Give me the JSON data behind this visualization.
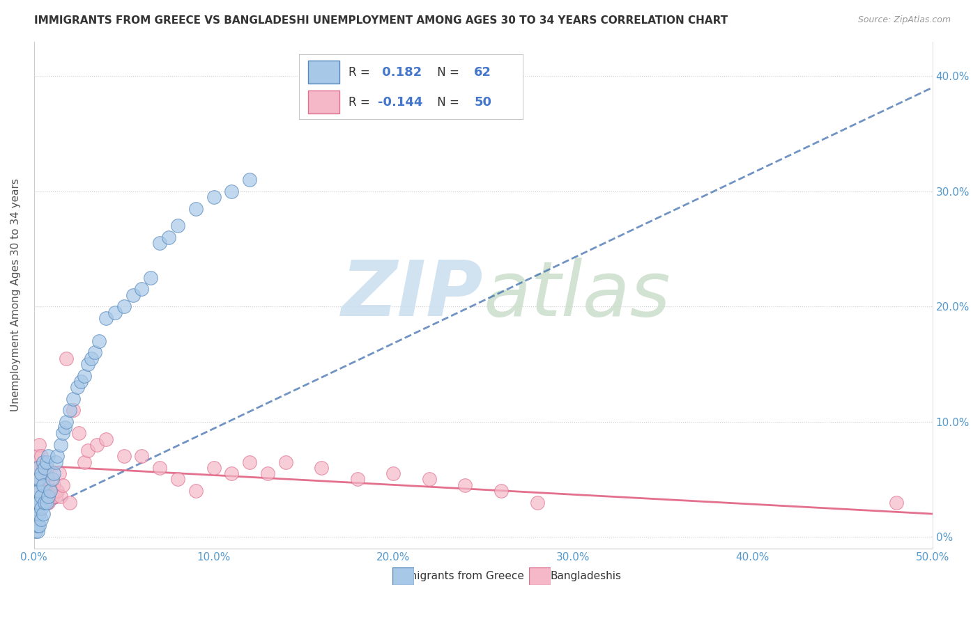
{
  "title": "IMMIGRANTS FROM GREECE VS BANGLADESHI UNEMPLOYMENT AMONG AGES 30 TO 34 YEARS CORRELATION CHART",
  "source": "Source: ZipAtlas.com",
  "ylabel": "Unemployment Among Ages 30 to 34 years",
  "xlim": [
    0,
    0.5
  ],
  "ylim": [
    -0.01,
    0.43
  ],
  "blue_color": "#a8c8e8",
  "pink_color": "#f4b8c8",
  "blue_edge_color": "#5588bb",
  "pink_edge_color": "#e07090",
  "blue_trend_color": "#3366aa",
  "pink_trend_color": "#e06080",
  "axis_color": "#5599cc",
  "title_color": "#333333",
  "source_color": "#999999",
  "watermark_zip_color": "#cce0f0",
  "watermark_atlas_color": "#c8ddc8",
  "legend_r1": "0.182",
  "legend_n1": "62",
  "legend_r2": "-0.144",
  "legend_n2": "50",
  "blue_scatter_x": [
    0.001,
    0.001,
    0.001,
    0.001,
    0.001,
    0.001,
    0.002,
    0.002,
    0.002,
    0.002,
    0.002,
    0.002,
    0.002,
    0.003,
    0.003,
    0.003,
    0.003,
    0.003,
    0.004,
    0.004,
    0.004,
    0.004,
    0.005,
    0.005,
    0.005,
    0.006,
    0.006,
    0.007,
    0.007,
    0.008,
    0.008,
    0.009,
    0.01,
    0.011,
    0.012,
    0.013,
    0.015,
    0.016,
    0.017,
    0.018,
    0.02,
    0.022,
    0.024,
    0.026,
    0.028,
    0.03,
    0.032,
    0.034,
    0.036,
    0.04,
    0.045,
    0.05,
    0.055,
    0.06,
    0.065,
    0.07,
    0.075,
    0.08,
    0.09,
    0.1,
    0.11,
    0.12
  ],
  "blue_scatter_y": [
    0.005,
    0.01,
    0.015,
    0.02,
    0.025,
    0.03,
    0.005,
    0.01,
    0.02,
    0.03,
    0.04,
    0.05,
    0.06,
    0.01,
    0.02,
    0.03,
    0.04,
    0.05,
    0.015,
    0.025,
    0.035,
    0.055,
    0.02,
    0.045,
    0.065,
    0.03,
    0.06,
    0.03,
    0.065,
    0.035,
    0.07,
    0.04,
    0.05,
    0.055,
    0.065,
    0.07,
    0.08,
    0.09,
    0.095,
    0.1,
    0.11,
    0.12,
    0.13,
    0.135,
    0.14,
    0.15,
    0.155,
    0.16,
    0.17,
    0.19,
    0.195,
    0.2,
    0.21,
    0.215,
    0.225,
    0.255,
    0.26,
    0.27,
    0.285,
    0.295,
    0.3,
    0.31
  ],
  "pink_scatter_x": [
    0.001,
    0.001,
    0.002,
    0.002,
    0.003,
    0.003,
    0.004,
    0.004,
    0.005,
    0.005,
    0.006,
    0.006,
    0.007,
    0.007,
    0.008,
    0.008,
    0.009,
    0.01,
    0.011,
    0.012,
    0.013,
    0.014,
    0.015,
    0.016,
    0.018,
    0.02,
    0.022,
    0.025,
    0.028,
    0.03,
    0.035,
    0.04,
    0.05,
    0.06,
    0.07,
    0.08,
    0.09,
    0.1,
    0.11,
    0.12,
    0.13,
    0.14,
    0.16,
    0.18,
    0.2,
    0.22,
    0.24,
    0.26,
    0.28,
    0.48
  ],
  "pink_scatter_y": [
    0.04,
    0.06,
    0.05,
    0.07,
    0.06,
    0.08,
    0.05,
    0.07,
    0.04,
    0.06,
    0.03,
    0.05,
    0.03,
    0.06,
    0.03,
    0.05,
    0.04,
    0.035,
    0.045,
    0.035,
    0.04,
    0.055,
    0.035,
    0.045,
    0.155,
    0.03,
    0.11,
    0.09,
    0.065,
    0.075,
    0.08,
    0.085,
    0.07,
    0.07,
    0.06,
    0.05,
    0.04,
    0.06,
    0.055,
    0.065,
    0.055,
    0.065,
    0.06,
    0.05,
    0.055,
    0.05,
    0.045,
    0.04,
    0.03,
    0.03
  ],
  "blue_trend_x0": 0.0,
  "blue_trend_x1": 0.5,
  "blue_trend_y0": 0.02,
  "blue_trend_y1": 0.39,
  "pink_trend_x0": 0.0,
  "pink_trend_x1": 0.5,
  "pink_trend_y0": 0.062,
  "pink_trend_y1": 0.02
}
